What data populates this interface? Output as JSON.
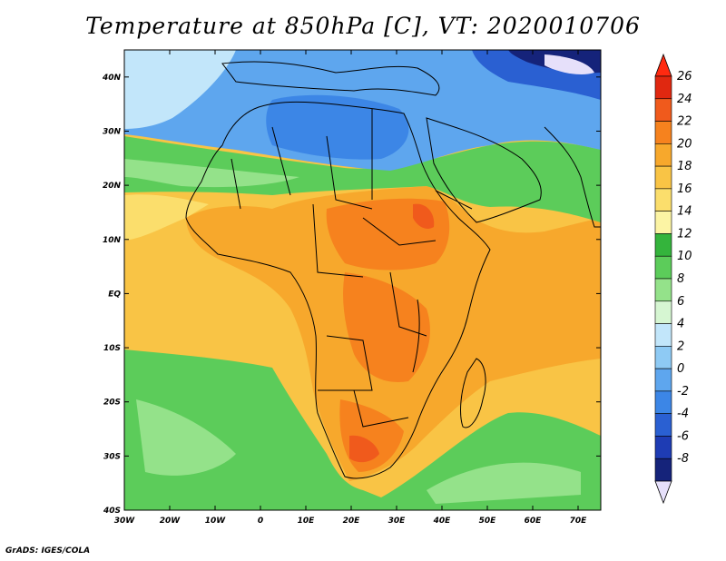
{
  "title": "Temperature at 850hPa [C], VT: 2020010706",
  "footer": "GrADS: IGES/COLA",
  "map": {
    "lon_labels": [
      "30W",
      "20W",
      "10W",
      "0",
      "10E",
      "20E",
      "30E",
      "40E",
      "50E",
      "60E",
      "70E"
    ],
    "lat_labels": [
      "40N",
      "30N",
      "20N",
      "10N",
      "EQ",
      "10S",
      "20S",
      "30S",
      "40S"
    ],
    "lon_range": [
      -30,
      75
    ],
    "lat_range": [
      -40,
      45
    ]
  },
  "colorbar": {
    "labels": [
      "26",
      "24",
      "22",
      "20",
      "18",
      "16",
      "14",
      "12",
      "10",
      "8",
      "6",
      "4",
      "2",
      "0",
      "-2",
      "-4",
      "-6",
      "-8"
    ],
    "colors": [
      "#e02810",
      "#f05a1c",
      "#f6821e",
      "#f7a82c",
      "#f9c445",
      "#fbde6c",
      "#fcf4a4",
      "#34b43c",
      "#5ccc5a",
      "#94e28a",
      "#d6f6d2",
      "#c2e6fa",
      "#8ecaf4",
      "#5ea6ee",
      "#3c86e6",
      "#2a60d2",
      "#1e3cb4",
      "#15237a"
    ],
    "cap_top": "#ff2a10",
    "cap_bottom": "#e6e0fa"
  },
  "fields": {
    "colors": {
      "sea_cool": "#5ccc5a",
      "sea_cool_light": "#94e28a",
      "sea_warm": "#f9c445",
      "land_warm": "#f7a82c",
      "land_hot": "#f6821e",
      "land_hotter": "#f05a1c",
      "north_cold": "#5ea6ee",
      "north_colder": "#3c86e6",
      "north_pale": "#c2e6fa",
      "north_coldest": "#1e3cb4",
      "border": "#000000"
    }
  }
}
